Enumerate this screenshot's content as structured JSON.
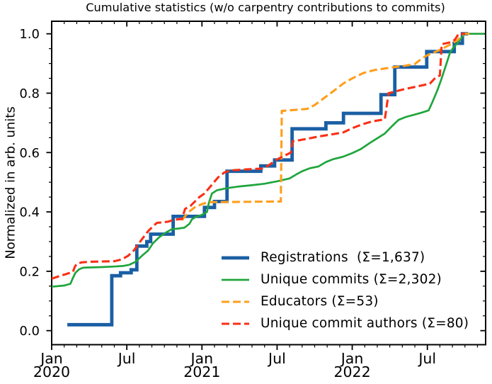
{
  "title": "Cumulative statistics (w/o carpentry contributions to commits)",
  "chart_data": {
    "type": "line",
    "title": "Cumulative statistics (w/o carpentry contributions to commits)",
    "xlabel": "",
    "ylabel": "Normalized in arb. units",
    "x_unit": "months since Jan 2020",
    "xlim": [
      0,
      34.6
    ],
    "ylim": [
      -0.047,
      1.042
    ],
    "grid": false,
    "y_ticks": {
      "major": [
        0.0,
        0.2,
        0.4,
        0.6,
        0.8,
        1.0
      ],
      "labels": [
        "0.0",
        "0.2",
        "0.4",
        "0.6",
        "0.8",
        "1.0"
      ],
      "minor_step": 0.05
    },
    "x_ticks": {
      "major": [
        {
          "m": 0,
          "label": "Jan",
          "year": "2020"
        },
        {
          "m": 6,
          "label": "Jul"
        },
        {
          "m": 12,
          "label": "Jan",
          "year": "2021"
        },
        {
          "m": 18,
          "label": "Jul"
        },
        {
          "m": 24,
          "label": "Jan",
          "year": "2022"
        },
        {
          "m": 30,
          "label": "Jul"
        }
      ],
      "minor_step": 1
    },
    "legend": {
      "position": "lower right",
      "frame": false
    },
    "series": [
      {
        "name": "Registrations",
        "legend_label": "Registrations  (Σ=1,637)",
        "total": "1,637",
        "color": "#1a5fa4",
        "style": "solid",
        "line_width": 4.8,
        "step": true,
        "points": [
          [
            1.25,
            0.02
          ],
          [
            4.8,
            0.185
          ],
          [
            5.5,
            0.195
          ],
          [
            6.35,
            0.205
          ],
          [
            6.8,
            0.285
          ],
          [
            7.6,
            0.3
          ],
          [
            7.9,
            0.325
          ],
          [
            9.7,
            0.385
          ],
          [
            12.2,
            0.415
          ],
          [
            13.0,
            0.435
          ],
          [
            14.0,
            0.537
          ],
          [
            16.7,
            0.555
          ],
          [
            17.8,
            0.575
          ],
          [
            19.2,
            0.68
          ],
          [
            21.9,
            0.7
          ],
          [
            23.3,
            0.732
          ],
          [
            26.3,
            0.795
          ],
          [
            27.4,
            0.888
          ],
          [
            29.95,
            0.94
          ],
          [
            32.15,
            0.968
          ],
          [
            32.8,
            1.0
          ]
        ],
        "end_m": 33.25
      },
      {
        "name": "Unique commits",
        "legend_label": "Unique commits (Σ=2,302)",
        "total": "2,302",
        "color": "#1fa53c",
        "style": "solid",
        "line_width": 2.7,
        "step": false,
        "points": [
          [
            0,
            0.148
          ],
          [
            1,
            0.152
          ],
          [
            1.5,
            0.158
          ],
          [
            1.7,
            0.178
          ],
          [
            1.9,
            0.195
          ],
          [
            2.2,
            0.207
          ],
          [
            2.5,
            0.212
          ],
          [
            3,
            0.213
          ],
          [
            4,
            0.214
          ],
          [
            5,
            0.216
          ],
          [
            5.7,
            0.218
          ],
          [
            6.2,
            0.222
          ],
          [
            6.7,
            0.232
          ],
          [
            7.2,
            0.252
          ],
          [
            7.7,
            0.27
          ],
          [
            8.1,
            0.295
          ],
          [
            8.6,
            0.315
          ],
          [
            9.1,
            0.33
          ],
          [
            9.6,
            0.342
          ],
          [
            10.1,
            0.344
          ],
          [
            10.6,
            0.347
          ],
          [
            11.0,
            0.36
          ],
          [
            11.2,
            0.375
          ],
          [
            11.5,
            0.383
          ],
          [
            12.0,
            0.39
          ],
          [
            12.4,
            0.4
          ],
          [
            12.55,
            0.43
          ],
          [
            12.8,
            0.462
          ],
          [
            13.2,
            0.473
          ],
          [
            14,
            0.48
          ],
          [
            15,
            0.486
          ],
          [
            16,
            0.49
          ],
          [
            17,
            0.495
          ],
          [
            18,
            0.503
          ],
          [
            19,
            0.513
          ],
          [
            19.6,
            0.528
          ],
          [
            20,
            0.537
          ],
          [
            20.6,
            0.547
          ],
          [
            21.3,
            0.553
          ],
          [
            21.9,
            0.568
          ],
          [
            22.5,
            0.578
          ],
          [
            23.2,
            0.585
          ],
          [
            24,
            0.598
          ],
          [
            24.7,
            0.612
          ],
          [
            25.4,
            0.632
          ],
          [
            26,
            0.648
          ],
          [
            26.6,
            0.664
          ],
          [
            27.2,
            0.69
          ],
          [
            27.7,
            0.71
          ],
          [
            28.3,
            0.72
          ],
          [
            29,
            0.728
          ],
          [
            29.6,
            0.735
          ],
          [
            30.1,
            0.742
          ],
          [
            30.4,
            0.77
          ],
          [
            30.8,
            0.81
          ],
          [
            31.1,
            0.845
          ],
          [
            31.45,
            0.89
          ],
          [
            31.8,
            0.935
          ],
          [
            32.1,
            0.955
          ],
          [
            32.45,
            0.97
          ],
          [
            32.7,
            0.985
          ],
          [
            32.95,
            1.0
          ],
          [
            34.55,
            1.0
          ]
        ],
        "end_m": 34.55
      },
      {
        "name": "Educators",
        "legend_label": "Educators (Σ=53)",
        "total": "53",
        "color": "#ff9e1c",
        "style": "dashed",
        "line_width": 3.1,
        "step": false,
        "points": [
          [
            10.4,
            0.372
          ],
          [
            10.9,
            0.398
          ],
          [
            11.4,
            0.415
          ],
          [
            12.1,
            0.428
          ],
          [
            12.6,
            0.433
          ],
          [
            18.3,
            0.435
          ],
          [
            18.38,
            0.74
          ],
          [
            20.4,
            0.747
          ],
          [
            21,
            0.76
          ],
          [
            21.8,
            0.785
          ],
          [
            22.6,
            0.81
          ],
          [
            23.3,
            0.833
          ],
          [
            24,
            0.85
          ],
          [
            24.9,
            0.868
          ],
          [
            25.8,
            0.878
          ],
          [
            26.6,
            0.883
          ],
          [
            27,
            0.886
          ],
          [
            28,
            0.891
          ],
          [
            29,
            0.898
          ],
          [
            29.5,
            0.915
          ],
          [
            30.0,
            0.928
          ],
          [
            30.7,
            0.94
          ],
          [
            31.3,
            0.952
          ],
          [
            32.0,
            0.968
          ],
          [
            32.4,
            0.978
          ],
          [
            32.9,
            1.0
          ],
          [
            33.5,
            1.0
          ]
        ],
        "end_m": 33.5
      },
      {
        "name": "Unique commit authors",
        "legend_label": "Unique commit authors (Σ=80)",
        "total": "80",
        "color": "#f93016",
        "style": "dashed",
        "line_width": 3.1,
        "step": false,
        "points": [
          [
            0,
            0.175
          ],
          [
            0.7,
            0.185
          ],
          [
            1.1,
            0.19
          ],
          [
            1.7,
            0.198
          ],
          [
            1.85,
            0.215
          ],
          [
            2.0,
            0.225
          ],
          [
            2.4,
            0.23
          ],
          [
            3,
            0.232
          ],
          [
            4,
            0.233
          ],
          [
            5,
            0.234
          ],
          [
            5.6,
            0.24
          ],
          [
            6.1,
            0.252
          ],
          [
            6.6,
            0.272
          ],
          [
            7.1,
            0.302
          ],
          [
            7.7,
            0.335
          ],
          [
            8.1,
            0.352
          ],
          [
            8.4,
            0.363
          ],
          [
            9.3,
            0.367
          ],
          [
            9.8,
            0.374
          ],
          [
            10.4,
            0.376
          ],
          [
            10.65,
            0.41
          ],
          [
            11.1,
            0.421
          ],
          [
            11.8,
            0.45
          ],
          [
            12.2,
            0.462
          ],
          [
            12.8,
            0.492
          ],
          [
            13.3,
            0.517
          ],
          [
            13.8,
            0.533
          ],
          [
            14.3,
            0.54
          ],
          [
            16.8,
            0.546
          ],
          [
            17.3,
            0.556
          ],
          [
            17.95,
            0.576
          ],
          [
            19.1,
            0.6
          ],
          [
            19.25,
            0.638
          ],
          [
            19.7,
            0.641
          ],
          [
            20.5,
            0.647
          ],
          [
            21.3,
            0.654
          ],
          [
            22.5,
            0.662
          ],
          [
            23.3,
            0.668
          ],
          [
            24,
            0.682
          ],
          [
            24.8,
            0.695
          ],
          [
            25.6,
            0.705
          ],
          [
            26.6,
            0.712
          ],
          [
            26.9,
            0.8
          ],
          [
            28,
            0.812
          ],
          [
            29,
            0.821
          ],
          [
            30.2,
            0.832
          ],
          [
            30.6,
            0.85
          ],
          [
            31.0,
            0.86
          ],
          [
            31.15,
            0.965
          ],
          [
            31.9,
            0.972
          ],
          [
            32.2,
            0.98
          ],
          [
            32.5,
            1.0
          ],
          [
            33.0,
            1.0
          ]
        ],
        "end_m": 33.0
      }
    ]
  }
}
